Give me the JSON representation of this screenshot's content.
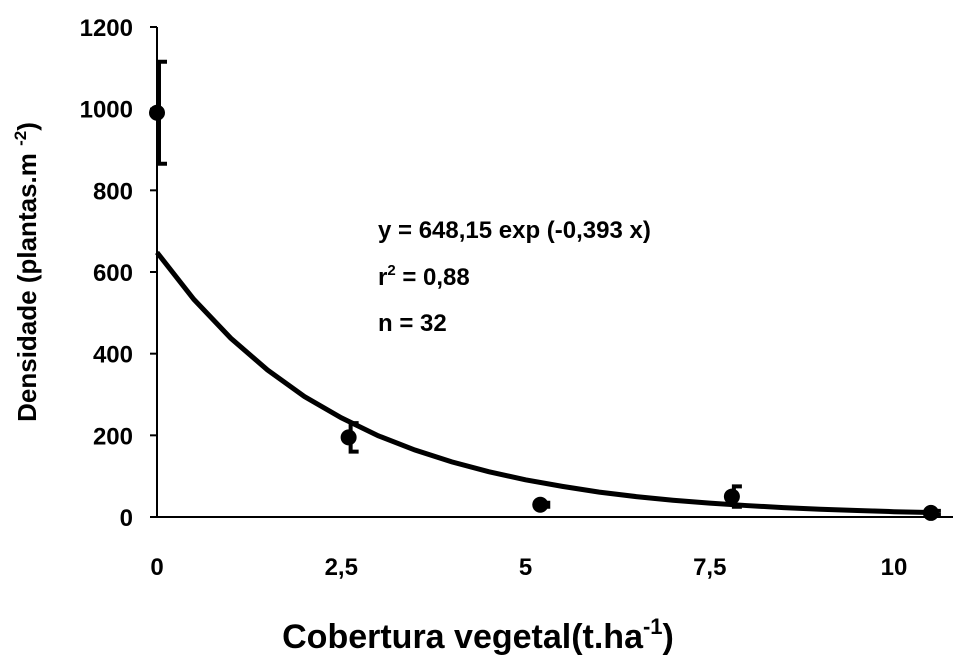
{
  "chart_data": {
    "type": "scatter",
    "x_label": [
      "Cobertura vegetal(t.ha",
      "-1",
      ")"
    ],
    "y_label": [
      "Densidade (plantas.m ",
      "-2",
      ")"
    ],
    "annotations": [
      [
        "y = 648,15 exp (-0,393 x)"
      ],
      [
        "r",
        "2",
        " = 0,88"
      ],
      [
        "n = 32"
      ]
    ],
    "xlim": [
      0,
      10.8
    ],
    "ylim": [
      0,
      1200
    ],
    "xticks": [
      0,
      {
        "value": 2.5,
        "label": "2,5"
      },
      5,
      {
        "value": 7.5,
        "label": "7,5"
      },
      10
    ],
    "yticks": [
      0,
      200,
      400,
      600,
      800,
      1000,
      1200
    ],
    "series": [
      {
        "color": "#000000",
        "x": [
          0,
          2.6,
          5.2,
          7.8,
          10.5
        ],
        "values": [
          990,
          195,
          30,
          50,
          10
        ],
        "errors": [
          125,
          35,
          5,
          25,
          5
        ]
      }
    ],
    "fit": {
      "type": "line",
      "color": "#000000",
      "x": [
        0,
        0.5,
        1,
        1.5,
        2,
        2.5,
        3,
        3.5,
        4,
        4.5,
        5,
        5.5,
        6,
        6.5,
        7,
        7.5,
        8,
        8.5,
        9,
        9.5,
        10,
        10.5
      ],
      "values": [
        648,
        533,
        438,
        360,
        295,
        243,
        199,
        164,
        135,
        111,
        91,
        75,
        61,
        50,
        41,
        34,
        28,
        23,
        19,
        16,
        13,
        11
      ]
    }
  }
}
